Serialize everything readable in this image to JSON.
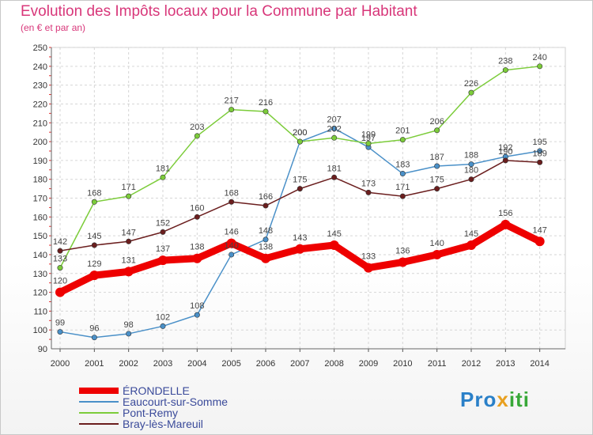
{
  "title": "Evolution des Impôts locaux pour la Commune par Habitant",
  "subtitle": "(en € et par an)",
  "logo": {
    "part1": "Pro",
    "part2": "x",
    "part3": "iti"
  },
  "chart_data": {
    "type": "line",
    "title": "Evolution des Impôts locaux pour la Commune par Habitant",
    "ylabel": "(en € et par an)",
    "xlabel": "",
    "ylim": [
      90,
      250
    ],
    "yticks": [
      90,
      100,
      110,
      120,
      130,
      140,
      150,
      160,
      170,
      180,
      190,
      200,
      210,
      220,
      230,
      240,
      250
    ],
    "x": [
      "2000",
      "2001",
      "2002",
      "2003",
      "2004",
      "2005",
      "2006",
      "2007",
      "2008",
      "2009",
      "2010",
      "2011",
      "2012",
      "2013",
      "2014"
    ],
    "grid": true,
    "legend_position": "bottom-left",
    "series": [
      {
        "name": "ÉRONDELLE",
        "color": "#ee0000",
        "emphasis": true,
        "values": [
          120,
          129,
          131,
          137,
          138,
          146,
          138,
          143,
          145,
          133,
          136,
          140,
          145,
          156,
          147
        ],
        "labels": [
          "120",
          "129",
          "131",
          "137",
          "138",
          "146",
          "138",
          "143",
          "145",
          "133",
          "136",
          "140",
          "145",
          "156",
          "147"
        ]
      },
      {
        "name": "Eaucourt-sur-Somme",
        "color": "#4a90c8",
        "emphasis": false,
        "values": [
          99,
          96,
          98,
          102,
          108,
          140,
          148,
          200,
          207,
          197,
          183,
          187,
          188,
          192,
          195
        ],
        "labels": [
          "99",
          "96",
          "98",
          "102",
          "108",
          "140",
          "148",
          "200",
          "207",
          "197",
          "183",
          "187",
          "188",
          "192",
          "195"
        ]
      },
      {
        "name": "Pont-Remy",
        "color": "#7ccc3a",
        "emphasis": false,
        "values": [
          133,
          168,
          171,
          181,
          203,
          217,
          216,
          200,
          202,
          199,
          201,
          206,
          226,
          238,
          240
        ],
        "labels": [
          "133",
          "168",
          "171",
          "181",
          "203",
          "217",
          "216",
          "200",
          "202",
          "199",
          "201",
          "206",
          "226",
          "238",
          "240"
        ]
      },
      {
        "name": "Bray-lès-Mareuil",
        "color": "#6b1e1e",
        "emphasis": false,
        "values": [
          142,
          145,
          147,
          152,
          160,
          168,
          166,
          175,
          181,
          173,
          171,
          175,
          180,
          190,
          189
        ],
        "labels": [
          "142",
          "145",
          "147",
          "152",
          "160",
          "168",
          "166",
          "175",
          "181",
          "173",
          "171",
          "175",
          "180",
          "190",
          "189"
        ]
      }
    ]
  }
}
